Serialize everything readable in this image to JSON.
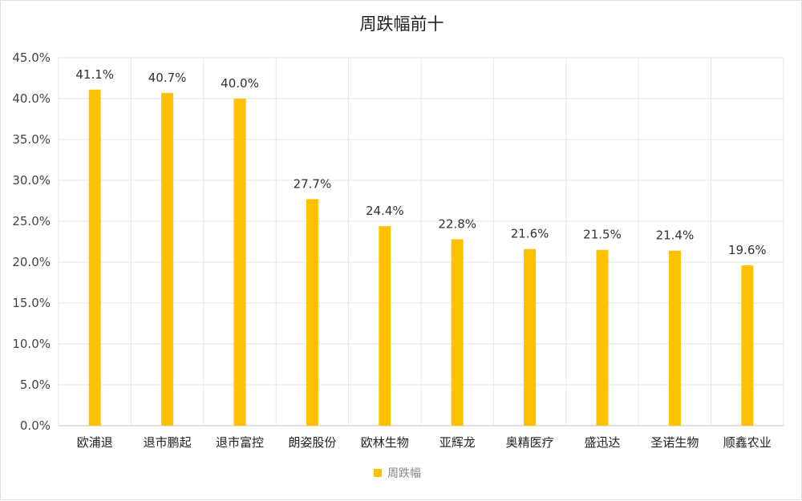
{
  "chart_data": {
    "type": "bar",
    "title": "周跌幅前十",
    "xlabel": "",
    "ylabel": "",
    "categories": [
      "欧浦退",
      "退市鹏起",
      "退市富控",
      "朗姿股份",
      "欧林生物",
      "亚辉龙",
      "奥精医疗",
      "盛迅达",
      "圣诺生物",
      "顺鑫农业"
    ],
    "series": [
      {
        "name": "周跌幅",
        "values": [
          41.1,
          40.7,
          40.0,
          27.7,
          24.4,
          22.8,
          21.6,
          21.5,
          21.4,
          19.6
        ],
        "value_labels": [
          "41.1%",
          "40.7%",
          "40.0%",
          "27.7%",
          "24.4%",
          "22.8%",
          "21.6%",
          "21.5%",
          "21.4%",
          "19.6%"
        ],
        "color": "#FFC000"
      }
    ],
    "ylim": [
      0,
      45
    ],
    "yticks": [
      0,
      5,
      10,
      15,
      20,
      25,
      30,
      35,
      40,
      45
    ],
    "ytick_labels": [
      "0.0%",
      "5.0%",
      "10.0%",
      "15.0%",
      "20.0%",
      "25.0%",
      "30.0%",
      "35.0%",
      "40.0%",
      "45.0%"
    ],
    "grid": true,
    "legend_position": "bottom-center",
    "colors": {
      "bar": "#FFC000",
      "grid": "#e6e6e6",
      "axis": "#bfbfbf"
    }
  }
}
